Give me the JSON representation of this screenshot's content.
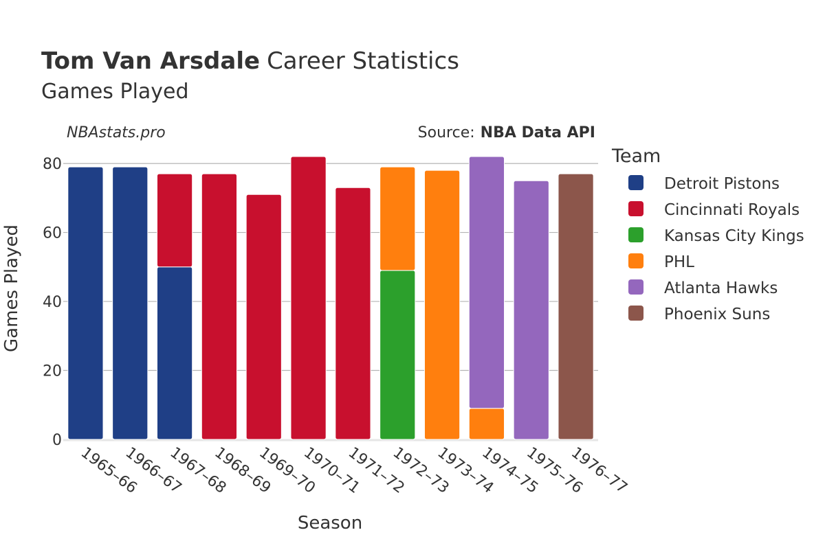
{
  "chart_data": {
    "type": "bar",
    "stacked": true,
    "title_bold": "Tom Van Arsdale",
    "title_rest": "Career Statistics",
    "subtitle": "Games Played",
    "watermark": "NBAstats.pro",
    "source_prefix": "Source:",
    "source_name": "NBA Data API",
    "xlabel": "Season",
    "ylabel": "Games Played",
    "ylim": [
      0,
      84
    ],
    "yticks": [
      0,
      20,
      40,
      60,
      80
    ],
    "grid": true,
    "legend_title": "Team",
    "legend_position": "right",
    "categories": [
      "1965–66",
      "1966–67",
      "1967–68",
      "1968–69",
      "1969–70",
      "1970–71",
      "1971–72",
      "1972–73",
      "1973–74",
      "1974–75",
      "1975–76",
      "1976–77"
    ],
    "series": [
      {
        "name": "Detroit Pistons",
        "color": "#1f3f86",
        "values": [
          79,
          79,
          50,
          0,
          0,
          0,
          0,
          0,
          0,
          0,
          0,
          0
        ]
      },
      {
        "name": "Cincinnati Royals",
        "color": "#c8102e",
        "values": [
          0,
          0,
          27,
          77,
          71,
          82,
          73,
          0,
          0,
          0,
          0,
          0
        ]
      },
      {
        "name": "Kansas City Kings",
        "color": "#2ca02c",
        "values": [
          0,
          0,
          0,
          0,
          0,
          0,
          0,
          49,
          0,
          0,
          0,
          0
        ]
      },
      {
        "name": "PHL",
        "color": "#ff7f0e",
        "values": [
          0,
          0,
          0,
          0,
          0,
          0,
          0,
          30,
          78,
          9,
          0,
          0
        ]
      },
      {
        "name": "Atlanta Hawks",
        "color": "#9467bd",
        "values": [
          0,
          0,
          0,
          0,
          0,
          0,
          0,
          0,
          0,
          73,
          75,
          0
        ]
      },
      {
        "name": "Phoenix Suns",
        "color": "#8c564b",
        "values": [
          0,
          0,
          0,
          0,
          0,
          0,
          0,
          0,
          0,
          0,
          0,
          77
        ]
      }
    ]
  }
}
